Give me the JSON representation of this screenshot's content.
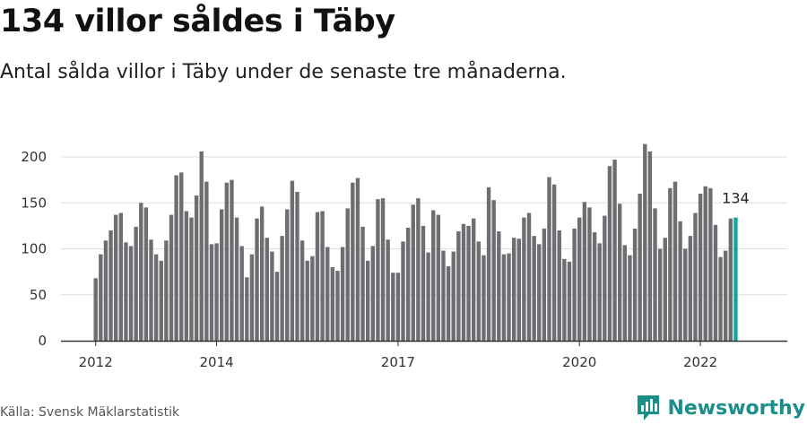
{
  "header": {
    "title": "134 villor såldes i Täby",
    "subtitle": "Antal sålda villor i Täby under de senaste tre månaderna."
  },
  "footer": {
    "source": "Källa: Svensk Mäklarstatistik",
    "brand": "Newsworthy",
    "brand_icon": "newsworthy-logo-icon"
  },
  "colors": {
    "bar": "#6e6e72",
    "highlight": "#18a39b",
    "grid": "#dddddd",
    "axis": "#333333",
    "brand": "#1a8f8a"
  },
  "chart_data": {
    "type": "bar",
    "title": "",
    "xlabel": "",
    "ylabel": "",
    "ylim": [
      0,
      220
    ],
    "yticks": [
      0,
      50,
      100,
      150,
      200
    ],
    "xtick_labels": [
      "2012",
      "2014",
      "2017",
      "2020",
      "2022"
    ],
    "grid": true,
    "highlight_label": "134",
    "values": [
      68,
      94,
      109,
      120,
      137,
      139,
      107,
      103,
      124,
      150,
      145,
      110,
      94,
      87,
      109,
      137,
      180,
      183,
      141,
      134,
      158,
      206,
      173,
      105,
      106,
      143,
      172,
      175,
      134,
      103,
      69,
      94,
      133,
      146,
      112,
      97,
      75,
      114,
      143,
      174,
      162,
      109,
      87,
      92,
      140,
      141,
      102,
      80,
      76,
      102,
      144,
      172,
      177,
      124,
      87,
      103,
      154,
      155,
      110,
      74,
      74,
      108,
      123,
      148,
      155,
      125,
      96,
      142,
      137,
      98,
      81,
      97,
      119,
      127,
      125,
      133,
      108,
      93,
      167,
      153,
      119,
      94,
      95,
      112,
      111,
      134,
      139,
      114,
      105,
      122,
      178,
      170,
      120,
      89,
      86,
      122,
      134,
      151,
      145,
      118,
      106,
      136,
      190,
      197,
      149,
      104,
      93,
      122,
      160,
      214,
      206,
      144,
      100,
      112,
      166,
      173,
      130,
      100,
      114,
      139,
      160,
      168,
      166,
      126,
      91,
      98,
      133,
      134
    ]
  }
}
